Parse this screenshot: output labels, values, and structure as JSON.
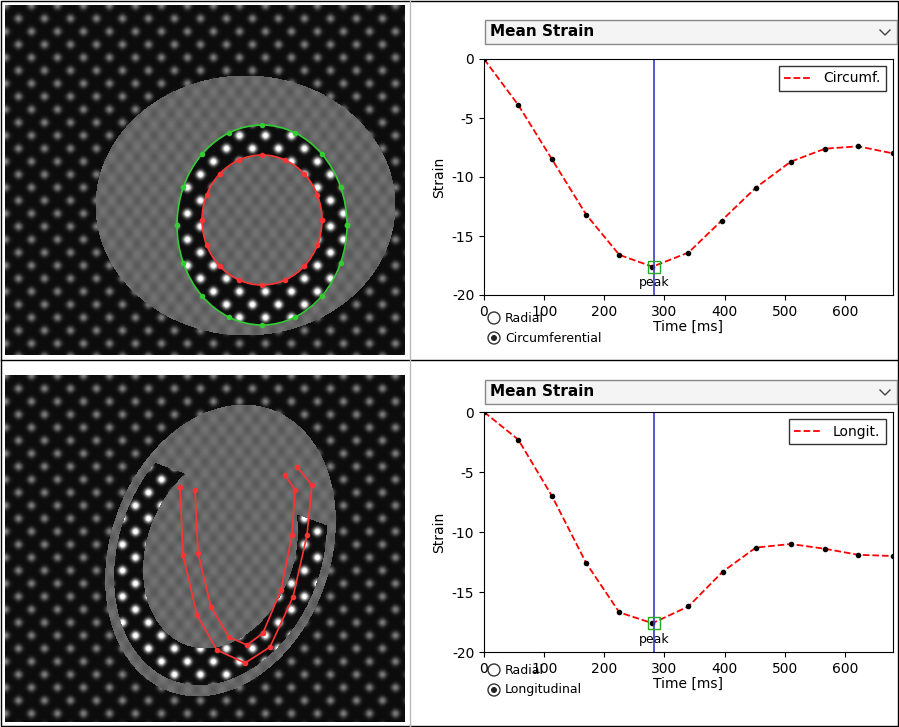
{
  "chart_data": [
    {
      "type": "line",
      "dropdown": "Mean Strain",
      "radio_options": [
        "Radial",
        "Circumferential"
      ],
      "radio_selected": "Circumferential",
      "x_label": "Time [ms]",
      "y_label": "Strain",
      "x": [
        0,
        57,
        113,
        170,
        225,
        280,
        340,
        395,
        452,
        510,
        567,
        622,
        680
      ],
      "series": [
        {
          "name": "Circumf.",
          "color": "#ff0000",
          "line_style": "dashed",
          "marker": "o",
          "values": [
            0,
            -3.9,
            -8.5,
            -13.2,
            -16.6,
            -17.6,
            -16.4,
            -13.7,
            -10.9,
            -8.7,
            -7.6,
            -7.4,
            -8.0
          ]
        }
      ],
      "peak": {
        "label": "peak",
        "x": 283,
        "y": -17.6
      },
      "xlim": [
        0,
        680
      ],
      "ylim": [
        -20,
        0
      ],
      "xticks": [
        0,
        100,
        200,
        300,
        400,
        500,
        600
      ],
      "yticks": [
        -20,
        -15,
        -10,
        -5,
        0
      ],
      "legend": "upper right",
      "grid": false
    },
    {
      "type": "line",
      "dropdown": "Mean Strain",
      "radio_options": [
        "Radial",
        "Longitudinal"
      ],
      "radio_selected": "Longitudinal",
      "x_label": "Time [ms]",
      "y_label": "Strain",
      "x": [
        0,
        57,
        113,
        170,
        225,
        280,
        340,
        397,
        452,
        510,
        567,
        622,
        680
      ],
      "series": [
        {
          "name": "Longit.",
          "color": "#ff0000",
          "line_style": "dashed",
          "marker": "o",
          "values": [
            0,
            -2.3,
            -7.0,
            -12.6,
            -16.7,
            -17.6,
            -16.2,
            -13.3,
            -11.3,
            -11.0,
            -11.4,
            -11.9,
            -12.0
          ]
        }
      ],
      "peak": {
        "label": "peak",
        "x": 283,
        "y": -17.6
      },
      "xlim": [
        0,
        680
      ],
      "ylim": [
        -20,
        0
      ],
      "xticks": [
        0,
        100,
        200,
        300,
        400,
        500,
        600
      ],
      "yticks": [
        -20,
        -15,
        -10,
        -5,
        0
      ],
      "legend": "upper right",
      "grid": false
    }
  ]
}
